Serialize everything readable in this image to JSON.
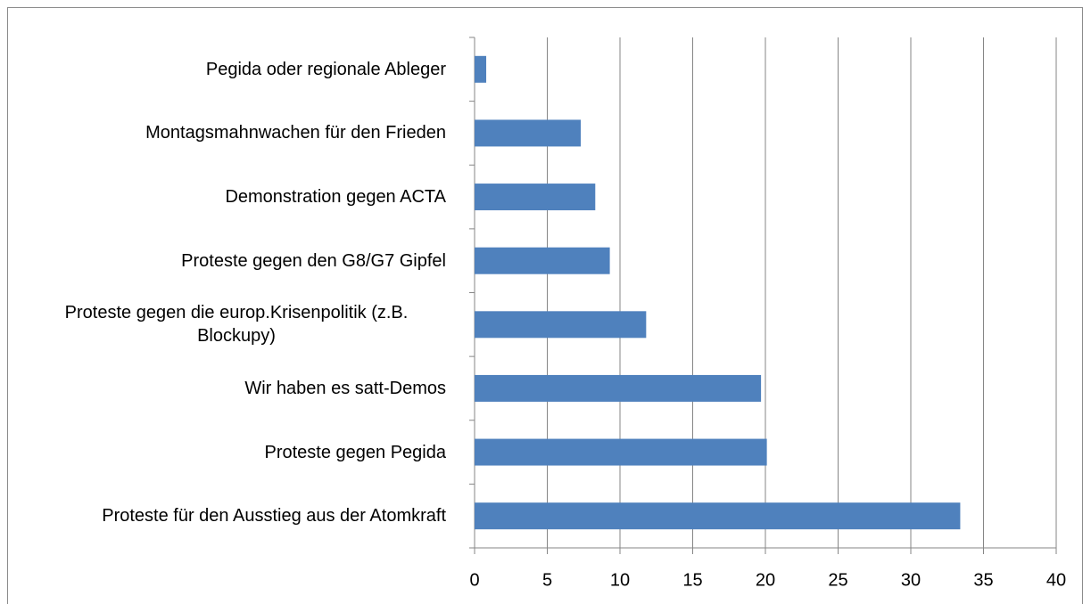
{
  "chart_data": {
    "type": "barh",
    "categories": [
      "Pegida oder regionale Ableger",
      "Montagsmahnwachen für den Frieden",
      "Demonstration gegen ACTA",
      "Proteste gegen den G8/G7 Gipfel",
      "Proteste gegen die europ.Krisenpolitik (z.B. Blockupy)",
      "Wir haben es satt-Demos",
      "Proteste gegen Pegida",
      "Proteste für den Ausstieg aus der Atomkraft"
    ],
    "values": [
      0.8,
      7.3,
      8.3,
      9.3,
      11.8,
      19.7,
      20.1,
      33.4
    ],
    "color": "#4f81bd",
    "xlim": [
      0,
      40
    ],
    "xticks": [
      0,
      5,
      10,
      15,
      20,
      25,
      30,
      35,
      40
    ],
    "grid": true
  }
}
